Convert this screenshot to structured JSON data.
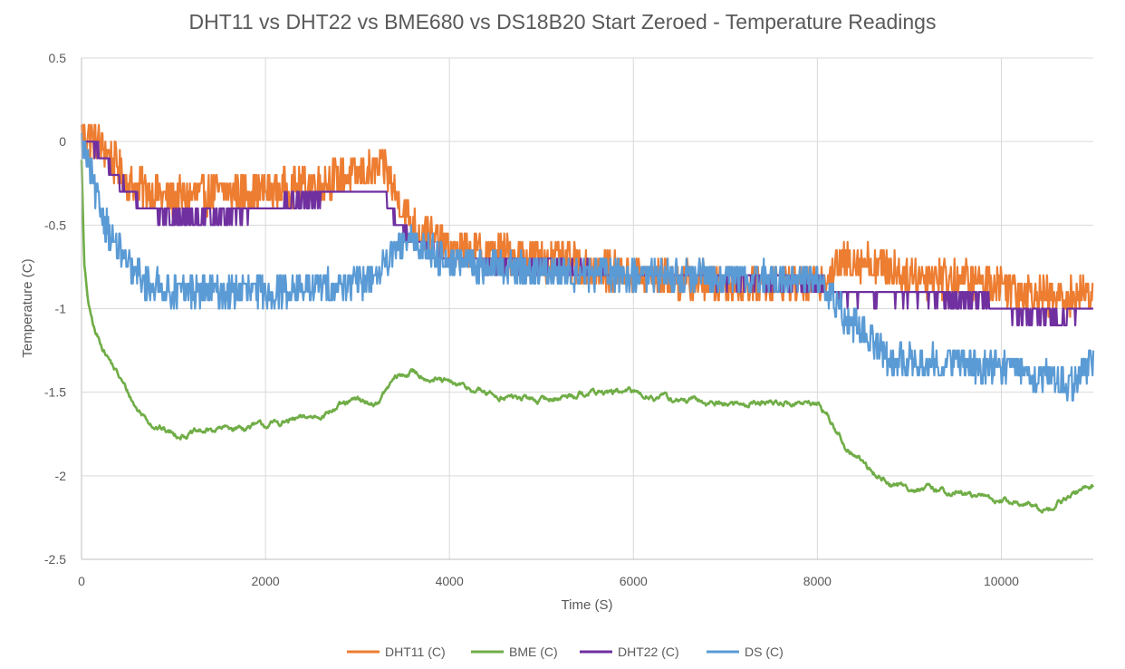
{
  "chart_data": {
    "type": "line",
    "title": "DHT11 vs DHT22 vs BME680 vs DS18B20 Start Zeroed - Temperature Readings",
    "xlabel": "Time (S)",
    "ylabel": "Temperature (C)",
    "xlim": [
      0,
      11000
    ],
    "ylim": [
      -2.5,
      0.5
    ],
    "xticks": [
      0,
      2000,
      4000,
      6000,
      8000,
      10000
    ],
    "yticks": [
      0.5,
      0,
      -0.5,
      -1,
      -1.5,
      -2,
      -2.5
    ],
    "xtick_labels": [
      "0",
      "2000",
      "4000",
      "6000",
      "8000",
      "10000"
    ],
    "ytick_labels": [
      "0.5",
      "0",
      "-0.5",
      "-1",
      "-1.5",
      "-2",
      "-2.5"
    ],
    "grid": true,
    "legend_position": "bottom",
    "series": [
      {
        "name": "DHT11 (C)",
        "color": "#ED7D31",
        "noise": 0.12,
        "x": [
          0,
          200,
          500,
          1000,
          1500,
          2000,
          2500,
          3000,
          3300,
          3400,
          3600,
          4000,
          5000,
          6000,
          7000,
          8000,
          8200,
          8400,
          9000,
          10000,
          10600,
          11000
        ],
        "y": [
          0.05,
          0.0,
          -0.25,
          -0.35,
          -0.3,
          -0.3,
          -0.25,
          -0.2,
          -0.15,
          -0.3,
          -0.5,
          -0.65,
          -0.7,
          -0.8,
          -0.85,
          -0.85,
          -0.75,
          -0.7,
          -0.8,
          -0.85,
          -0.95,
          -0.9
        ]
      },
      {
        "name": "BME (C)",
        "color": "#70AD47",
        "noise": 0.012,
        "x": [
          0,
          30,
          80,
          150,
          250,
          400,
          600,
          800,
          1000,
          1200,
          1500,
          2000,
          2500,
          3000,
          3200,
          3300,
          3400,
          3600,
          4000,
          4500,
          5000,
          5500,
          6000,
          6500,
          7000,
          7500,
          8000,
          8100,
          8300,
          8600,
          8800,
          9000,
          9500,
          10000,
          10500,
          11000
        ],
        "y": [
          -0.1,
          -0.75,
          -1.0,
          -1.15,
          -1.25,
          -1.4,
          -1.6,
          -1.7,
          -1.75,
          -1.75,
          -1.72,
          -1.7,
          -1.65,
          -1.55,
          -1.57,
          -1.5,
          -1.42,
          -1.38,
          -1.45,
          -1.52,
          -1.55,
          -1.5,
          -1.5,
          -1.55,
          -1.57,
          -1.56,
          -1.57,
          -1.63,
          -1.82,
          -1.98,
          -2.05,
          -2.07,
          -2.1,
          -2.15,
          -2.2,
          -2.05
        ]
      },
      {
        "name": "DHT22 (C)",
        "color": "#7030A0",
        "noise": 0.035,
        "x": [
          0,
          150,
          300,
          500,
          700,
          900,
          1500,
          2000,
          2500,
          2800,
          3000,
          3300,
          3400,
          3600,
          4000,
          5000,
          6000,
          7000,
          8000,
          8200,
          8500,
          9000,
          9800,
          10000,
          10300,
          10600,
          11000
        ],
        "y": [
          0.0,
          -0.05,
          -0.15,
          -0.3,
          -0.4,
          -0.45,
          -0.45,
          -0.4,
          -0.35,
          -0.3,
          -0.3,
          -0.3,
          -0.45,
          -0.6,
          -0.7,
          -0.75,
          -0.8,
          -0.82,
          -0.85,
          -0.92,
          -0.92,
          -0.92,
          -0.95,
          -1.0,
          -1.05,
          -1.05,
          -1.0
        ]
      },
      {
        "name": "DS (C)",
        "color": "#5B9BD5",
        "noise": 0.1,
        "x": [
          0,
          100,
          200,
          350,
          500,
          700,
          1000,
          1500,
          2000,
          2500,
          3000,
          3300,
          3500,
          3800,
          4000,
          5000,
          6000,
          7000,
          8000,
          8100,
          8300,
          8600,
          8800,
          9000,
          9500,
          10000,
          10300,
          10600,
          10800,
          11000
        ],
        "y": [
          0.0,
          -0.2,
          -0.4,
          -0.6,
          -0.75,
          -0.85,
          -0.9,
          -0.9,
          -0.9,
          -0.88,
          -0.85,
          -0.75,
          -0.6,
          -0.65,
          -0.72,
          -0.78,
          -0.8,
          -0.82,
          -0.82,
          -0.88,
          -1.05,
          -1.2,
          -1.3,
          -1.32,
          -1.32,
          -1.35,
          -1.4,
          -1.42,
          -1.45,
          -1.3
        ]
      }
    ]
  }
}
